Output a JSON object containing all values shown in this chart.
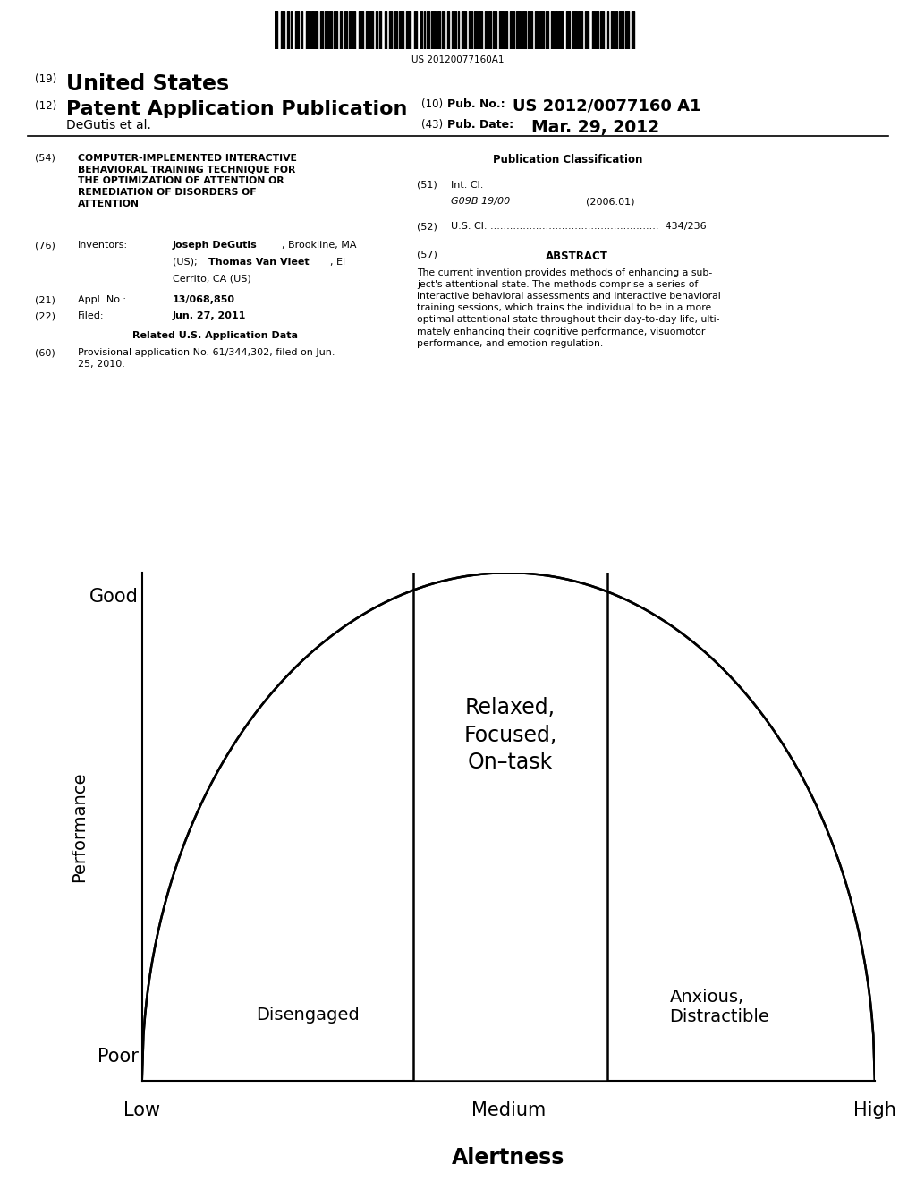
{
  "bg_color": "#ffffff",
  "barcode_text": "US 20120077160A1",
  "diagram": {
    "xlabel": "Alertness",
    "ylabel": "Performance",
    "x_ticks": [
      "Low",
      "Medium",
      "High"
    ],
    "y_ticks": [
      "Poor",
      "Good"
    ],
    "curve_label_center": "Relaxed,\nFocused,\nOn–task",
    "curve_label_left": "Disengaged",
    "curve_label_right": "Anxious,\nDistractible"
  }
}
